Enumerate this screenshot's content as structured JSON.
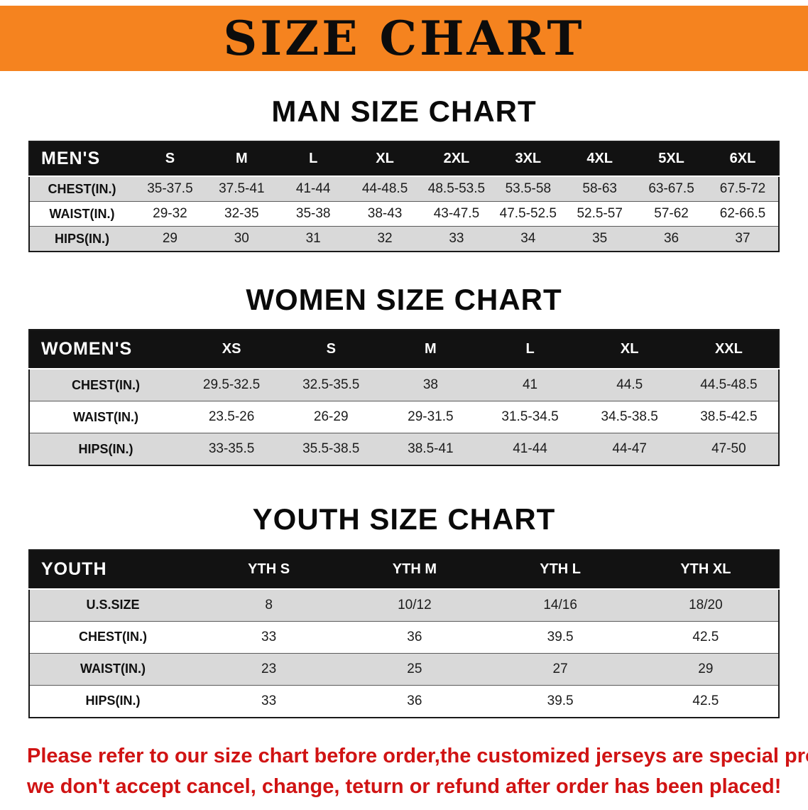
{
  "colors": {
    "banner_bg": "#f5831f",
    "table_header_bg": "#121212",
    "row_stripe_gray": "#d9d9d9",
    "notice_red": "#d01313"
  },
  "banner": {
    "title": "SIZE CHART"
  },
  "sections": [
    {
      "heading": "MAN SIZE CHART",
      "table": {
        "title": "MEN'S",
        "header": [
          "MEN'S",
          "S",
          "M",
          "L",
          "XL",
          "2XL",
          "3XL",
          "4XL",
          "5XL",
          "6XL"
        ],
        "rows": [
          [
            "CHEST(IN.)",
            "35-37.5",
            "37.5-41",
            "41-44",
            "44-48.5",
            "48.5-53.5",
            "53.5-58",
            "58-63",
            "63-67.5",
            "67.5-72"
          ],
          [
            "WAIST(IN.)",
            "29-32",
            "32-35",
            "35-38",
            "38-43",
            "43-47.5",
            "47.5-52.5",
            "52.5-57",
            "57-62",
            "62-66.5"
          ],
          [
            "HIPS(IN.)",
            "29",
            "30",
            "31",
            "32",
            "33",
            "34",
            "35",
            "36",
            "37"
          ]
        ]
      }
    },
    {
      "heading": "WOMEN SIZE CHART",
      "table": {
        "title": "WOMEN'S",
        "header": [
          "WOMEN'S",
          "XS",
          "S",
          "M",
          "L",
          "XL",
          "XXL"
        ],
        "rows": [
          [
            "CHEST(IN.)",
            "29.5-32.5",
            "32.5-35.5",
            "38",
            "41",
            "44.5",
            "44.5-48.5"
          ],
          [
            "WAIST(IN.)",
            "23.5-26",
            "26-29",
            "29-31.5",
            "31.5-34.5",
            "34.5-38.5",
            "38.5-42.5"
          ],
          [
            "HIPS(IN.)",
            "33-35.5",
            "35.5-38.5",
            "38.5-41",
            "41-44",
            "44-47",
            "47-50"
          ]
        ]
      }
    },
    {
      "heading": "YOUTH SIZE CHART",
      "table": {
        "title": "YOUTH",
        "header": [
          "YOUTH",
          "YTH S",
          "YTH M",
          "YTH L",
          "YTH XL"
        ],
        "rows": [
          [
            "U.S.SIZE",
            "8",
            "10/12",
            "14/16",
            "18/20"
          ],
          [
            "CHEST(IN.)",
            "33",
            "36",
            "39.5",
            "42.5"
          ],
          [
            "WAIST(IN.)",
            "23",
            "25",
            "27",
            "29"
          ],
          [
            "HIPS(IN.)",
            "33",
            "36",
            "39.5",
            "42.5"
          ]
        ]
      }
    }
  ],
  "notice": {
    "lines": [
      "Please refer to our size chart before order,the customized jerseys are special products,",
      "we don't accept cancel, change, teturn or refund after order has been placed!"
    ]
  }
}
